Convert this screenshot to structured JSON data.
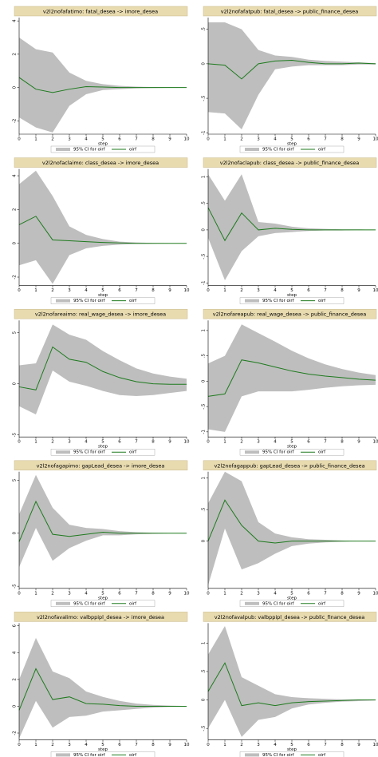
{
  "chart_data": [
    {
      "type": "line",
      "title": "v2l2nofafatimo: fatal_desea -> imore_desea",
      "xlabel": "step",
      "x": [
        0,
        1,
        2,
        3,
        4,
        5,
        6,
        7,
        8,
        9,
        10
      ],
      "xlim": [
        0,
        10
      ],
      "xticks": [
        0,
        1,
        2,
        3,
        4,
        5,
        6,
        7,
        8,
        9,
        10
      ],
      "ylim": [
        -2.8,
        4.2
      ],
      "yticks": [
        -2,
        0,
        2,
        4
      ],
      "series": [
        {
          "name": "95% CI for oirf",
          "color": "#bebebe",
          "upper": [
            3.0,
            2.3,
            2.1,
            0.9,
            0.4,
            0.2,
            0.1,
            0.05,
            0.03,
            0.02,
            0.01
          ],
          "lower": [
            -1.8,
            -2.4,
            -2.7,
            -1.1,
            -0.4,
            -0.15,
            -0.1,
            -0.05,
            -0.03,
            -0.02,
            -0.01
          ]
        },
        {
          "name": "oirf",
          "color": "#1e7a1e",
          "values": [
            0.6,
            -0.1,
            -0.3,
            -0.1,
            0.05,
            0.03,
            0.0,
            0.0,
            0.0,
            0.0,
            0.0
          ]
        }
      ]
    },
    {
      "type": "line",
      "title": "v2l2nofafatpub: fatal_desea -> public_finance_desea",
      "xlabel": "step",
      "x": [
        0,
        1,
        2,
        3,
        4,
        5,
        6,
        7,
        8,
        9,
        10
      ],
      "xlim": [
        0,
        10
      ],
      "xticks": [
        0,
        1,
        2,
        3,
        4,
        5,
        6,
        7,
        8,
        9,
        10
      ],
      "ylim": [
        -1.02,
        0.67
      ],
      "yticks": [
        -1,
        {
          "value": -0.5,
          "label": "-.5"
        },
        0,
        {
          "value": 0.5,
          "label": ".5"
        }
      ],
      "series": [
        {
          "name": "95% CI for oirf",
          "color": "#bebebe",
          "upper": [
            0.6,
            0.6,
            0.5,
            0.2,
            0.12,
            0.1,
            0.06,
            0.04,
            0.03,
            0.02,
            0.01
          ],
          "lower": [
            -0.7,
            -0.72,
            -0.95,
            -0.45,
            -0.08,
            -0.04,
            -0.02,
            -0.02,
            -0.02,
            -0.01,
            -0.01
          ]
        },
        {
          "name": "oirf",
          "color": "#1e7a1e",
          "values": [
            0.0,
            -0.02,
            -0.22,
            0.0,
            0.04,
            0.05,
            0.02,
            0.0,
            0.0,
            0.01,
            0.0
          ]
        }
      ]
    },
    {
      "type": "line",
      "title": "v2l2nofaclaimo: class_desea -> imore_desea",
      "xlabel": "step",
      "x": [
        0,
        1,
        2,
        3,
        4,
        5,
        6,
        7,
        8,
        9,
        10
      ],
      "xlim": [
        0,
        10
      ],
      "xticks": [
        0,
        1,
        2,
        3,
        4,
        5,
        6,
        7,
        8,
        9,
        10
      ],
      "ylim": [
        -2.5,
        4.4
      ],
      "yticks": [
        -2,
        0,
        2,
        4
      ],
      "series": [
        {
          "name": "95% CI for oirf",
          "color": "#bebebe",
          "upper": [
            3.5,
            4.3,
            2.8,
            1.0,
            0.5,
            0.25,
            0.1,
            0.05,
            0.02,
            0.01,
            0.01
          ],
          "lower": [
            -1.3,
            -1.0,
            -2.4,
            -0.7,
            -0.3,
            -0.15,
            -0.08,
            -0.04,
            -0.02,
            -0.01,
            -0.01
          ]
        },
        {
          "name": "oirf",
          "color": "#1e7a1e",
          "values": [
            1.1,
            1.6,
            0.2,
            0.15,
            0.1,
            0.05,
            0.02,
            0.0,
            0.0,
            0.0,
            0.0
          ]
        }
      ]
    },
    {
      "type": "line",
      "title": "v2l2nofaclapub: class_desea -> public_finance_desea",
      "xlabel": "step",
      "x": [
        0,
        1,
        2,
        3,
        4,
        5,
        6,
        7,
        8,
        9,
        10
      ],
      "xlim": [
        0,
        10
      ],
      "xticks": [
        0,
        1,
        2,
        3,
        4,
        5,
        6,
        7,
        8,
        9,
        10
      ],
      "ylim": [
        -1.05,
        1.15
      ],
      "yticks": [
        -1,
        {
          "value": -0.5,
          "label": "-.5"
        },
        0,
        {
          "value": 0.5,
          "label": ".5"
        },
        1
      ],
      "series": [
        {
          "name": "95% CI for oirf",
          "color": "#bebebe",
          "upper": [
            1.05,
            0.55,
            1.05,
            0.15,
            0.12,
            0.06,
            0.03,
            0.02,
            0.01,
            0.01,
            0.0
          ],
          "lower": [
            -0.15,
            -0.95,
            -0.4,
            -0.12,
            -0.06,
            -0.04,
            -0.02,
            -0.01,
            -0.01,
            0.0,
            0.0
          ]
        },
        {
          "name": "oirf",
          "color": "#1e7a1e",
          "values": [
            0.42,
            -0.2,
            0.32,
            0.0,
            0.03,
            0.01,
            0.0,
            0.0,
            0.0,
            0.0,
            0.0
          ]
        }
      ]
    },
    {
      "type": "line",
      "title": "v2l2nofareaimo: real_wage_desea -> imore_desea",
      "xlabel": "step",
      "x": [
        0,
        1,
        2,
        3,
        4,
        5,
        6,
        7,
        8,
        9,
        10
      ],
      "xlim": [
        0,
        10
      ],
      "xticks": [
        0,
        1,
        2,
        3,
        4,
        5,
        6,
        7,
        8,
        9,
        10
      ],
      "ylim": [
        -5.2,
        6.2
      ],
      "yticks": [
        -5,
        0,
        5
      ],
      "series": [
        {
          "name": "95% CI for oirf",
          "color": "#bebebe",
          "upper": [
            1.8,
            2.0,
            5.8,
            4.8,
            4.3,
            3.2,
            2.3,
            1.5,
            1.0,
            0.7,
            0.5
          ],
          "lower": [
            -2.2,
            -3.0,
            1.3,
            0.2,
            -0.2,
            -0.7,
            -1.1,
            -1.2,
            -1.1,
            -0.9,
            -0.7
          ]
        },
        {
          "name": "oirf",
          "color": "#1e7a1e",
          "values": [
            -0.3,
            -0.6,
            3.6,
            2.4,
            2.1,
            1.2,
            0.6,
            0.2,
            0.0,
            -0.05,
            -0.05
          ]
        }
      ]
    },
    {
      "type": "line",
      "title": "v2l2nofareapub: real_wage_desea -> public_finance_desea",
      "xlabel": "step",
      "x": [
        0,
        1,
        2,
        3,
        4,
        5,
        6,
        7,
        8,
        9,
        10
      ],
      "xlim": [
        0,
        10
      ],
      "xticks": [
        0,
        1,
        2,
        3,
        4,
        5,
        6,
        7,
        8,
        9,
        10
      ],
      "ylim": [
        -1.1,
        1.2
      ],
      "yticks": [
        -1,
        {
          "value": -0.5,
          "label": "-.5"
        },
        0,
        {
          "value": 0.5,
          "label": ".5"
        },
        1
      ],
      "series": [
        {
          "name": "95% CI for oirf",
          "color": "#bebebe",
          "upper": [
            0.35,
            0.5,
            1.12,
            0.95,
            0.78,
            0.6,
            0.45,
            0.33,
            0.24,
            0.17,
            0.12
          ],
          "lower": [
            -0.95,
            -1.0,
            -0.3,
            -0.2,
            -0.2,
            -0.2,
            -0.17,
            -0.13,
            -0.1,
            -0.08,
            -0.07
          ]
        },
        {
          "name": "oirf",
          "color": "#1e7a1e",
          "values": [
            -0.3,
            -0.25,
            0.42,
            0.36,
            0.28,
            0.2,
            0.14,
            0.1,
            0.07,
            0.04,
            0.02
          ]
        }
      ]
    },
    {
      "type": "line",
      "title": "v2l2nofagapimo: gapLead_desea -> imore_desea",
      "xlabel": "step",
      "x": [
        0,
        1,
        2,
        3,
        4,
        5,
        6,
        7,
        8,
        9,
        10
      ],
      "xlim": [
        0,
        10
      ],
      "xticks": [
        0,
        1,
        2,
        3,
        4,
        5,
        6,
        7,
        8,
        9,
        10
      ],
      "ylim": [
        -5.2,
        5.8
      ],
      "yticks": [
        -5,
        0,
        5
      ],
      "series": [
        {
          "name": "95% CI for oirf",
          "color": "#bebebe",
          "upper": [
            1.8,
            5.5,
            2.4,
            0.8,
            0.5,
            0.4,
            0.2,
            0.1,
            0.05,
            0.02,
            0.01
          ],
          "lower": [
            -3.2,
            0.5,
            -2.6,
            -1.4,
            -0.7,
            -0.2,
            -0.2,
            -0.1,
            -0.05,
            -0.02,
            -0.01
          ]
        },
        {
          "name": "oirf",
          "color": "#1e7a1e",
          "values": [
            -0.8,
            3.0,
            -0.1,
            -0.3,
            -0.1,
            0.1,
            0.0,
            0.0,
            0.0,
            0.0,
            0.0
          ]
        }
      ]
    },
    {
      "type": "line",
      "title": "v2l2nofagappub: gapLead_desea -> public_finance_desea",
      "xlabel": "step",
      "x": [
        0,
        1,
        2,
        3,
        4,
        5,
        6,
        7,
        8,
        9,
        10
      ],
      "xlim": [
        0,
        10
      ],
      "xticks": [
        0,
        1,
        2,
        3,
        4,
        5,
        6,
        7,
        8,
        9,
        10
      ],
      "ylim": [
        -0.75,
        1.1
      ],
      "yticks": [
        0,
        {
          "value": 0.5,
          "label": ".5"
        },
        1
      ],
      "series": [
        {
          "name": "95% CI for oirf",
          "color": "#bebebe",
          "upper": [
            0.6,
            1.1,
            0.95,
            0.3,
            0.12,
            0.06,
            0.03,
            0.02,
            0.01,
            0.0,
            0.0
          ],
          "lower": [
            -0.7,
            0.2,
            -0.45,
            -0.35,
            -0.2,
            -0.08,
            -0.04,
            -0.02,
            -0.01,
            0.0,
            0.0
          ]
        },
        {
          "name": "oirf",
          "color": "#1e7a1e",
          "values": [
            0.0,
            0.65,
            0.25,
            0.0,
            -0.03,
            0.0,
            0.0,
            0.0,
            0.0,
            0.0,
            0.0
          ]
        }
      ]
    },
    {
      "type": "line",
      "title": "v2l2nofavalimo: valbppipl_desea -> imore_desea",
      "xlabel": "step",
      "x": [
        0,
        1,
        2,
        3,
        4,
        5,
        6,
        7,
        8,
        9,
        10
      ],
      "xlim": [
        0,
        10
      ],
      "xticks": [
        0,
        1,
        2,
        3,
        4,
        5,
        6,
        7,
        8,
        9,
        10
      ],
      "ylim": [
        -2.5,
        6.2
      ],
      "yticks": [
        -2,
        0,
        2,
        4,
        6
      ],
      "series": [
        {
          "name": "95% CI for oirf",
          "color": "#bebebe",
          "upper": [
            2.0,
            5.1,
            2.6,
            2.1,
            1.1,
            0.7,
            0.4,
            0.2,
            0.1,
            0.05,
            0.02
          ],
          "lower": [
            -2.4,
            0.4,
            -1.6,
            -0.8,
            -0.7,
            -0.4,
            -0.3,
            -0.2,
            -0.1,
            -0.05,
            -0.02
          ]
        },
        {
          "name": "oirf",
          "color": "#1e7a1e",
          "values": [
            -0.3,
            2.8,
            0.5,
            0.7,
            0.2,
            0.15,
            0.05,
            0.0,
            0.0,
            0.0,
            0.0
          ]
        }
      ]
    },
    {
      "type": "line",
      "title": "v2l2nofavalpub: valbppipl_desea -> public_finance_desea",
      "xlabel": "step",
      "x": [
        0,
        1,
        2,
        3,
        4,
        5,
        6,
        7,
        8,
        9,
        10
      ],
      "xlim": [
        0,
        10
      ],
      "xticks": [
        0,
        1,
        2,
        3,
        4,
        5,
        6,
        7,
        8,
        9,
        10
      ],
      "ylim": [
        -0.7,
        1.35
      ],
      "yticks": [
        {
          "value": -0.5,
          "label": "-.5"
        },
        0,
        {
          "value": 0.5,
          "label": ".5"
        },
        1
      ],
      "series": [
        {
          "name": "95% CI for oirf",
          "color": "#bebebe",
          "upper": [
            0.8,
            1.3,
            0.4,
            0.25,
            0.1,
            0.05,
            0.03,
            0.02,
            0.01,
            0.01,
            0.0
          ],
          "lower": [
            -0.5,
            0.0,
            -0.65,
            -0.35,
            -0.3,
            -0.15,
            -0.08,
            -0.05,
            -0.03,
            -0.02,
            -0.01
          ]
        },
        {
          "name": "oirf",
          "color": "#1e7a1e",
          "values": [
            0.15,
            0.65,
            -0.1,
            -0.05,
            -0.1,
            -0.05,
            -0.03,
            -0.02,
            -0.01,
            0.0,
            0.0
          ]
        }
      ]
    }
  ]
}
